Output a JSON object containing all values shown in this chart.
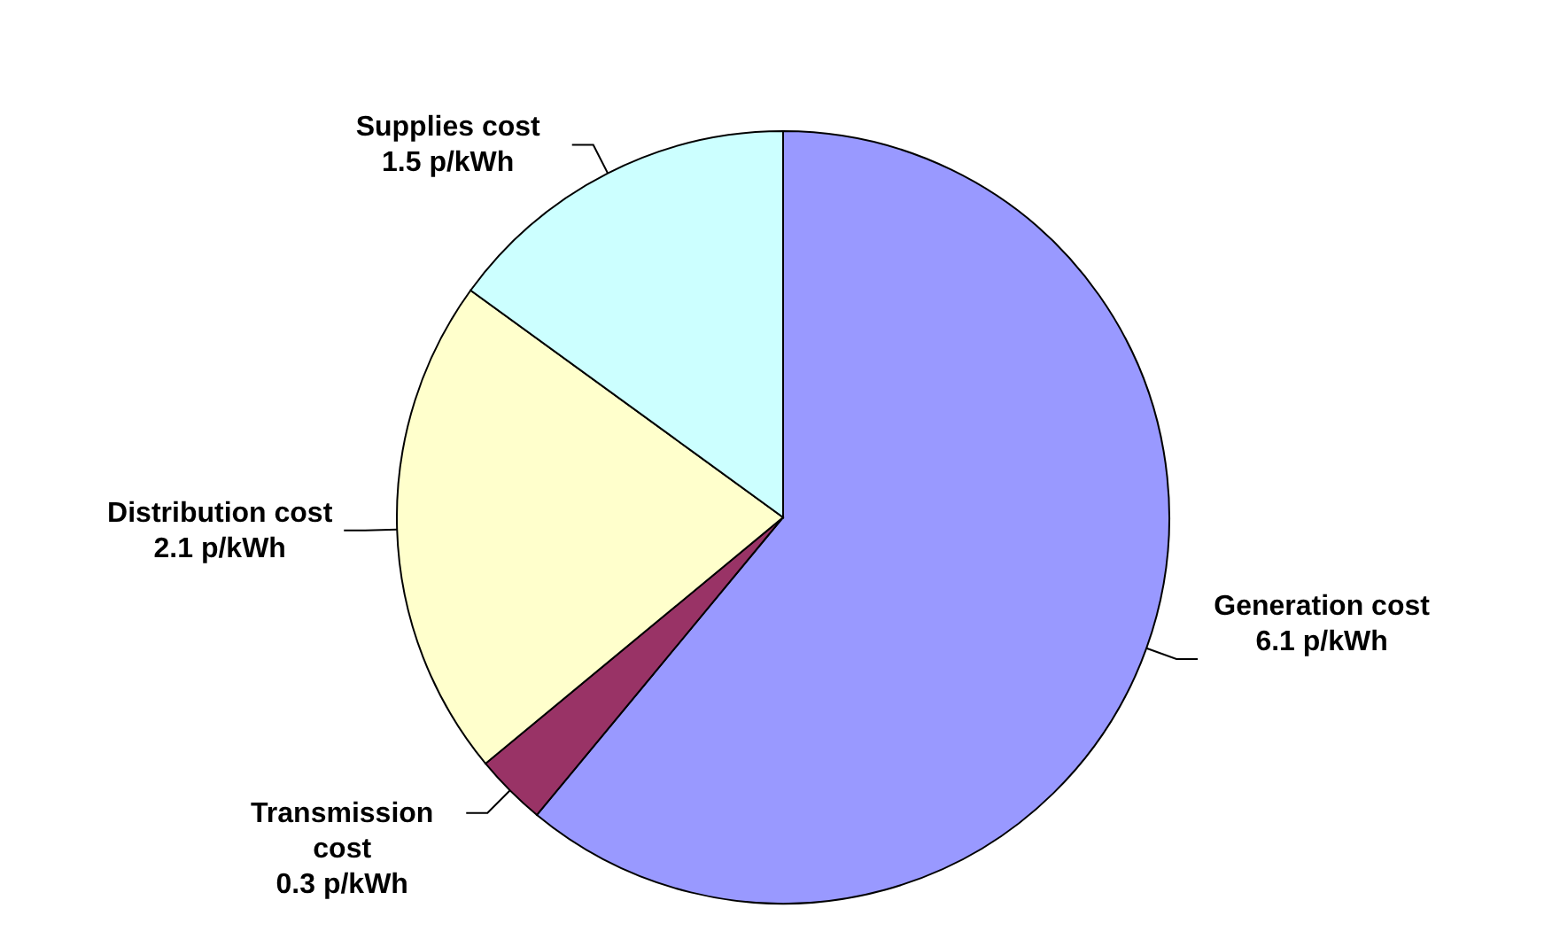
{
  "chart_data": {
    "type": "pie",
    "categories": [
      "Generation cost",
      "Transmission cost",
      "Distribution cost",
      "Supplies cost"
    ],
    "values": [
      6.1,
      0.3,
      2.1,
      1.5
    ],
    "colors": [
      "#9999ff",
      "#993366",
      "#ffffcc",
      "#ccffff"
    ],
    "value_labels": [
      "6.1 p/kWh",
      "0.3 p/kWh",
      "2.1 p/kWh",
      "1.5 p/kWh"
    ],
    "legend": false
  }
}
